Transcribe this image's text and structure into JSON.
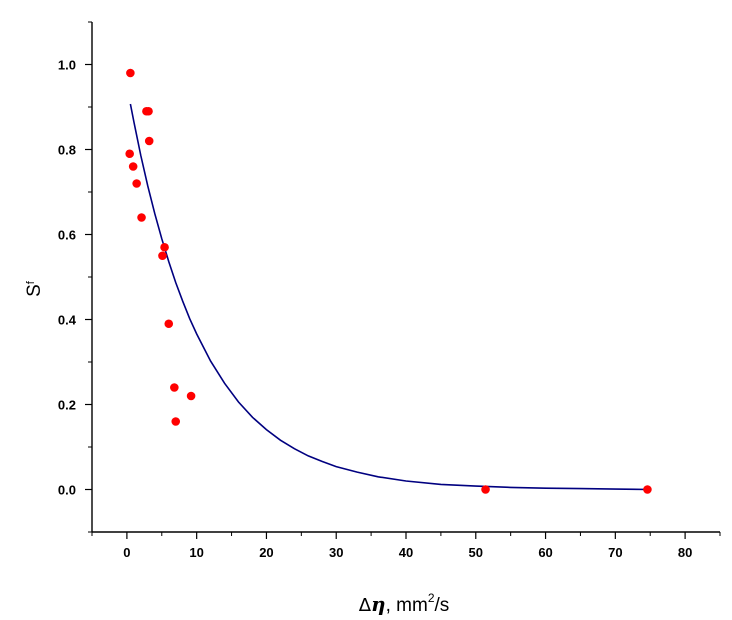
{
  "chart_data": {
    "type": "scatter",
    "xlabel": "Δη, mm²/s",
    "xlabel_parts": {
      "delta": "Δ",
      "eta": "η",
      "unit": ", mm",
      "sup": "2",
      "tail": "/s"
    },
    "ylabel": "Sf",
    "ylabel_parts": {
      "main": "S",
      "sub": "f"
    },
    "xlim": [
      -5,
      85
    ],
    "ylim": [
      -0.1,
      1.1
    ],
    "x_ticks": [
      0,
      10,
      20,
      30,
      40,
      50,
      60,
      70,
      80
    ],
    "x_tick_labels": [
      "0",
      "10",
      "20",
      "30",
      "40",
      "50",
      "60",
      "70",
      "80"
    ],
    "y_ticks": [
      0.0,
      0.2,
      0.4,
      0.6,
      0.8,
      1.0
    ],
    "y_tick_labels": [
      "0.0",
      "0.2",
      "0.4",
      "0.6",
      "0.8",
      "1.0"
    ],
    "grid": false,
    "series": [
      {
        "type": "scatter",
        "color": "#ff0000",
        "points": [
          {
            "x": 0.5,
            "y": 0.98
          },
          {
            "x": 0.4,
            "y": 0.79
          },
          {
            "x": 0.9,
            "y": 0.76
          },
          {
            "x": 1.4,
            "y": 0.72
          },
          {
            "x": 2.1,
            "y": 0.64
          },
          {
            "x": 2.8,
            "y": 0.89
          },
          {
            "x": 3.1,
            "y": 0.89
          },
          {
            "x": 3.2,
            "y": 0.82
          },
          {
            "x": 5.1,
            "y": 0.55
          },
          {
            "x": 5.4,
            "y": 0.57
          },
          {
            "x": 6.0,
            "y": 0.39
          },
          {
            "x": 6.8,
            "y": 0.24
          },
          {
            "x": 7.0,
            "y": 0.16
          },
          {
            "x": 9.2,
            "y": 0.22
          },
          {
            "x": 51.4,
            "y": 0.0
          },
          {
            "x": 74.6,
            "y": 0.0
          }
        ]
      },
      {
        "type": "line",
        "color": "#000080",
        "points": [
          {
            "x": 0.5,
            "y": 0.907
          },
          {
            "x": 1,
            "y": 0.865
          },
          {
            "x": 2,
            "y": 0.786
          },
          {
            "x": 3,
            "y": 0.714
          },
          {
            "x": 4,
            "y": 0.649
          },
          {
            "x": 5,
            "y": 0.59
          },
          {
            "x": 6,
            "y": 0.536
          },
          {
            "x": 7,
            "y": 0.487
          },
          {
            "x": 8,
            "y": 0.443
          },
          {
            "x": 9,
            "y": 0.402
          },
          {
            "x": 10,
            "y": 0.366
          },
          {
            "x": 12,
            "y": 0.302
          },
          {
            "x": 14,
            "y": 0.25
          },
          {
            "x": 16,
            "y": 0.206
          },
          {
            "x": 18,
            "y": 0.17
          },
          {
            "x": 20,
            "y": 0.141
          },
          {
            "x": 22,
            "y": 0.116
          },
          {
            "x": 24,
            "y": 0.096
          },
          {
            "x": 26,
            "y": 0.079
          },
          {
            "x": 28,
            "y": 0.066
          },
          {
            "x": 30,
            "y": 0.054
          },
          {
            "x": 33,
            "y": 0.041
          },
          {
            "x": 36,
            "y": 0.03
          },
          {
            "x": 40,
            "y": 0.02
          },
          {
            "x": 45,
            "y": 0.012
          },
          {
            "x": 50,
            "y": 0.008
          },
          {
            "x": 55,
            "y": 0.005
          },
          {
            "x": 60,
            "y": 0.003
          },
          {
            "x": 65,
            "y": 0.002
          },
          {
            "x": 70,
            "y": 0.001
          },
          {
            "x": 75,
            "y": 0.0
          }
        ]
      }
    ]
  }
}
